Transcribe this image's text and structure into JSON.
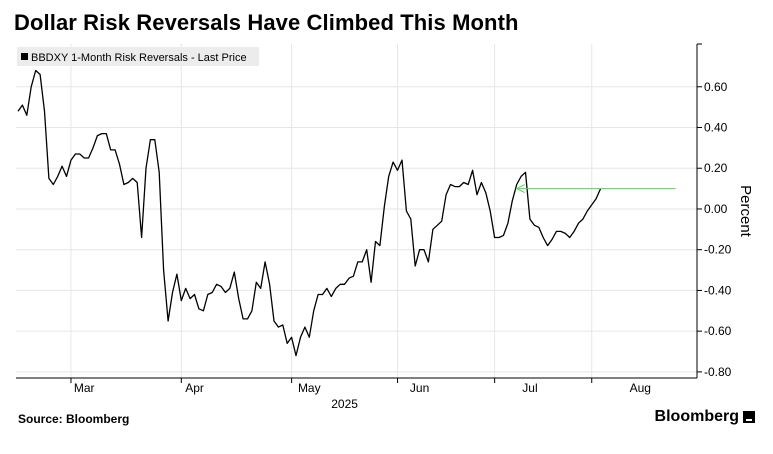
{
  "chart_data": {
    "type": "line",
    "title": "Dollar Risk Reversals Have Climbed This Month",
    "legend": "BBDXY 1-Month Risk Reversals - Last Price",
    "ylabel": "Percent",
    "xlabel": "2025",
    "ylim": [
      -0.83,
      0.81
    ],
    "yticks": [
      -0.8,
      -0.6,
      -0.4,
      -0.2,
      0.0,
      0.2,
      0.4,
      0.6
    ],
    "ytick_labels": [
      "-0.80",
      "-0.60",
      "-0.40",
      "-0.20",
      "0.00",
      "0.20",
      "0.40",
      "0.60"
    ],
    "months": [
      "Mar",
      "Apr",
      "May",
      "Jun",
      "Jul",
      "Aug"
    ],
    "grid": true,
    "line_color": "#000000",
    "arrow_color": "#4cd94c",
    "arrow_annotation": {
      "from_index": 113,
      "to_index": 149,
      "y": 0.1
    },
    "x_index_range": [
      0,
      150
    ],
    "month_tick_indices": [
      -14,
      12,
      37,
      62,
      86,
      108,
      130
    ],
    "month_label_indices": [
      15,
      40,
      66,
      91,
      116,
      141
    ],
    "values": [
      0.48,
      0.51,
      0.46,
      0.6,
      0.68,
      0.66,
      0.48,
      0.15,
      0.12,
      0.16,
      0.21,
      0.16,
      0.24,
      0.27,
      0.27,
      0.25,
      0.25,
      0.3,
      0.36,
      0.37,
      0.37,
      0.29,
      0.29,
      0.22,
      0.12,
      0.13,
      0.15,
      0.13,
      -0.14,
      0.2,
      0.34,
      0.34,
      0.18,
      -0.3,
      -0.55,
      -0.41,
      -0.32,
      -0.45,
      -0.39,
      -0.44,
      -0.42,
      -0.49,
      -0.5,
      -0.42,
      -0.41,
      -0.37,
      -0.38,
      -0.41,
      -0.39,
      -0.31,
      -0.44,
      -0.54,
      -0.54,
      -0.5,
      -0.36,
      -0.39,
      -0.26,
      -0.37,
      -0.55,
      -0.58,
      -0.57,
      -0.66,
      -0.63,
      -0.72,
      -0.63,
      -0.58,
      -0.63,
      -0.5,
      -0.42,
      -0.42,
      -0.39,
      -0.43,
      -0.39,
      -0.37,
      -0.37,
      -0.34,
      -0.33,
      -0.26,
      -0.26,
      -0.2,
      -0.36,
      -0.16,
      -0.18,
      0.01,
      0.16,
      0.23,
      0.19,
      0.24,
      -0.01,
      -0.05,
      -0.28,
      -0.2,
      -0.2,
      -0.26,
      -0.1,
      -0.08,
      -0.06,
      0.07,
      0.12,
      0.11,
      0.11,
      0.13,
      0.12,
      0.19,
      0.07,
      0.13,
      0.08,
      -0.01,
      -0.14,
      -0.14,
      -0.13,
      -0.07,
      0.04,
      0.12,
      0.16,
      0.18,
      -0.05,
      -0.08,
      -0.09,
      -0.14,
      -0.18,
      -0.15,
      -0.11,
      -0.11,
      -0.12,
      -0.14,
      -0.11,
      -0.07,
      -0.05,
      -0.01,
      0.02,
      0.05,
      0.1
    ]
  },
  "footer": {
    "source": "Source: Bloomberg",
    "brand": "Bloomberg"
  }
}
